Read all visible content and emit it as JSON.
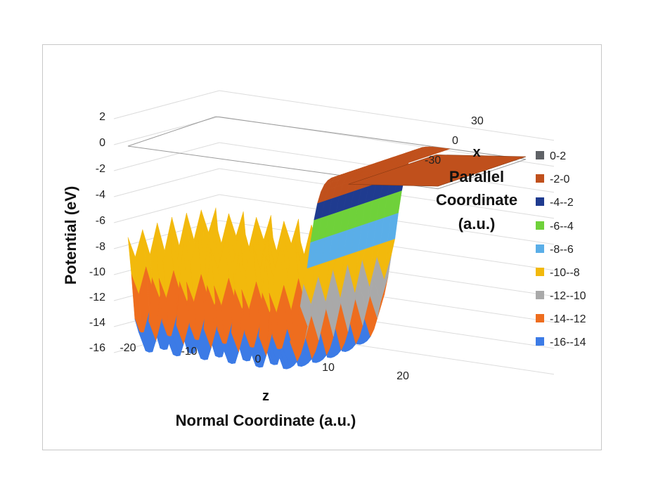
{
  "chart_data": {
    "type": "surface",
    "title": "",
    "z_axis": {
      "label_line1": "Potential (eV)",
      "ticks": [
        "2",
        "0",
        "-2",
        "-4",
        "-6",
        "-8",
        "-10",
        "-12",
        "-14",
        "-16"
      ],
      "range": [
        -16,
        2
      ]
    },
    "x_axis": {
      "label_letter": "z",
      "label": "Normal Coordinate (a.u.)",
      "ticks": [
        "-20",
        "-10",
        "0",
        "10",
        "20"
      ],
      "range": [
        -20,
        25
      ]
    },
    "y_axis": {
      "label_letter": "x",
      "label_lines": [
        "Parallel",
        "Coordinate",
        "(a.u.)"
      ],
      "ticks": [
        "30",
        "0",
        "-30"
      ],
      "range": [
        -30,
        30
      ]
    },
    "bands": [
      {
        "label": "0-2",
        "min": 0,
        "max": 2,
        "color": "#5f6266"
      },
      {
        "label": "-2-0",
        "min": -2,
        "max": 0,
        "color": "#c0501c"
      },
      {
        "label": "-4--2",
        "min": -4,
        "max": -2,
        "color": "#1f3b8f"
      },
      {
        "label": "-6--4",
        "min": -6,
        "max": -4,
        "color": "#6fd13a"
      },
      {
        "label": "-8--6",
        "min": -8,
        "max": -6,
        "color": "#5aaee8"
      },
      {
        "label": "-10--8",
        "min": -10,
        "max": -8,
        "color": "#f2b90c"
      },
      {
        "label": "-12--10",
        "min": -12,
        "max": -10,
        "color": "#a9a9a9"
      },
      {
        "label": "-14--12",
        "min": -14,
        "max": -12,
        "color": "#ee6d1e"
      },
      {
        "label": "-16--14",
        "min": -16,
        "max": -14,
        "color": "#3c7be6"
      }
    ],
    "profile": {
      "description_values_z": [
        -20,
        -15,
        -10,
        -5,
        0,
        5,
        10,
        15,
        20,
        25
      ],
      "well_bottom_eV": -15,
      "vacuum_level_eV": 0,
      "surface_z": 6,
      "atom_rows_z": [
        -20,
        -16,
        -12,
        -8,
        -4,
        0
      ]
    }
  }
}
